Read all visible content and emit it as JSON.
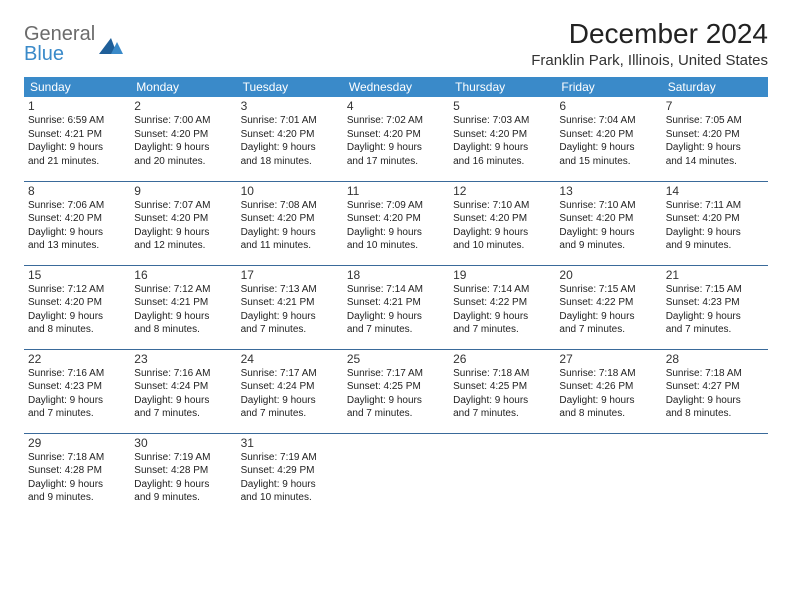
{
  "logo": {
    "top": "General",
    "bottom": "Blue"
  },
  "title": "December 2024",
  "location": "Franklin Park, Illinois, United States",
  "colors": {
    "header_bg": "#3a8ac9",
    "header_text": "#ffffff",
    "row_border": "#3a6a9a",
    "logo_gray": "#6b6b6b",
    "logo_blue": "#3a8ac9",
    "page_bg": "#ffffff"
  },
  "typography": {
    "title_fontsize": 28,
    "location_fontsize": 15,
    "header_fontsize": 12,
    "daynum_fontsize": 12,
    "body_fontsize": 10
  },
  "weekdays": [
    "Sunday",
    "Monday",
    "Tuesday",
    "Wednesday",
    "Thursday",
    "Friday",
    "Saturday"
  ],
  "weeks": [
    [
      {
        "n": "1",
        "sr": "Sunrise: 6:59 AM",
        "ss": "Sunset: 4:21 PM",
        "d1": "Daylight: 9 hours",
        "d2": "and 21 minutes."
      },
      {
        "n": "2",
        "sr": "Sunrise: 7:00 AM",
        "ss": "Sunset: 4:20 PM",
        "d1": "Daylight: 9 hours",
        "d2": "and 20 minutes."
      },
      {
        "n": "3",
        "sr": "Sunrise: 7:01 AM",
        "ss": "Sunset: 4:20 PM",
        "d1": "Daylight: 9 hours",
        "d2": "and 18 minutes."
      },
      {
        "n": "4",
        "sr": "Sunrise: 7:02 AM",
        "ss": "Sunset: 4:20 PM",
        "d1": "Daylight: 9 hours",
        "d2": "and 17 minutes."
      },
      {
        "n": "5",
        "sr": "Sunrise: 7:03 AM",
        "ss": "Sunset: 4:20 PM",
        "d1": "Daylight: 9 hours",
        "d2": "and 16 minutes."
      },
      {
        "n": "6",
        "sr": "Sunrise: 7:04 AM",
        "ss": "Sunset: 4:20 PM",
        "d1": "Daylight: 9 hours",
        "d2": "and 15 minutes."
      },
      {
        "n": "7",
        "sr": "Sunrise: 7:05 AM",
        "ss": "Sunset: 4:20 PM",
        "d1": "Daylight: 9 hours",
        "d2": "and 14 minutes."
      }
    ],
    [
      {
        "n": "8",
        "sr": "Sunrise: 7:06 AM",
        "ss": "Sunset: 4:20 PM",
        "d1": "Daylight: 9 hours",
        "d2": "and 13 minutes."
      },
      {
        "n": "9",
        "sr": "Sunrise: 7:07 AM",
        "ss": "Sunset: 4:20 PM",
        "d1": "Daylight: 9 hours",
        "d2": "and 12 minutes."
      },
      {
        "n": "10",
        "sr": "Sunrise: 7:08 AM",
        "ss": "Sunset: 4:20 PM",
        "d1": "Daylight: 9 hours",
        "d2": "and 11 minutes."
      },
      {
        "n": "11",
        "sr": "Sunrise: 7:09 AM",
        "ss": "Sunset: 4:20 PM",
        "d1": "Daylight: 9 hours",
        "d2": "and 10 minutes."
      },
      {
        "n": "12",
        "sr": "Sunrise: 7:10 AM",
        "ss": "Sunset: 4:20 PM",
        "d1": "Daylight: 9 hours",
        "d2": "and 10 minutes."
      },
      {
        "n": "13",
        "sr": "Sunrise: 7:10 AM",
        "ss": "Sunset: 4:20 PM",
        "d1": "Daylight: 9 hours",
        "d2": "and 9 minutes."
      },
      {
        "n": "14",
        "sr": "Sunrise: 7:11 AM",
        "ss": "Sunset: 4:20 PM",
        "d1": "Daylight: 9 hours",
        "d2": "and 9 minutes."
      }
    ],
    [
      {
        "n": "15",
        "sr": "Sunrise: 7:12 AM",
        "ss": "Sunset: 4:20 PM",
        "d1": "Daylight: 9 hours",
        "d2": "and 8 minutes."
      },
      {
        "n": "16",
        "sr": "Sunrise: 7:12 AM",
        "ss": "Sunset: 4:21 PM",
        "d1": "Daylight: 9 hours",
        "d2": "and 8 minutes."
      },
      {
        "n": "17",
        "sr": "Sunrise: 7:13 AM",
        "ss": "Sunset: 4:21 PM",
        "d1": "Daylight: 9 hours",
        "d2": "and 7 minutes."
      },
      {
        "n": "18",
        "sr": "Sunrise: 7:14 AM",
        "ss": "Sunset: 4:21 PM",
        "d1": "Daylight: 9 hours",
        "d2": "and 7 minutes."
      },
      {
        "n": "19",
        "sr": "Sunrise: 7:14 AM",
        "ss": "Sunset: 4:22 PM",
        "d1": "Daylight: 9 hours",
        "d2": "and 7 minutes."
      },
      {
        "n": "20",
        "sr": "Sunrise: 7:15 AM",
        "ss": "Sunset: 4:22 PM",
        "d1": "Daylight: 9 hours",
        "d2": "and 7 minutes."
      },
      {
        "n": "21",
        "sr": "Sunrise: 7:15 AM",
        "ss": "Sunset: 4:23 PM",
        "d1": "Daylight: 9 hours",
        "d2": "and 7 minutes."
      }
    ],
    [
      {
        "n": "22",
        "sr": "Sunrise: 7:16 AM",
        "ss": "Sunset: 4:23 PM",
        "d1": "Daylight: 9 hours",
        "d2": "and 7 minutes."
      },
      {
        "n": "23",
        "sr": "Sunrise: 7:16 AM",
        "ss": "Sunset: 4:24 PM",
        "d1": "Daylight: 9 hours",
        "d2": "and 7 minutes."
      },
      {
        "n": "24",
        "sr": "Sunrise: 7:17 AM",
        "ss": "Sunset: 4:24 PM",
        "d1": "Daylight: 9 hours",
        "d2": "and 7 minutes."
      },
      {
        "n": "25",
        "sr": "Sunrise: 7:17 AM",
        "ss": "Sunset: 4:25 PM",
        "d1": "Daylight: 9 hours",
        "d2": "and 7 minutes."
      },
      {
        "n": "26",
        "sr": "Sunrise: 7:18 AM",
        "ss": "Sunset: 4:25 PM",
        "d1": "Daylight: 9 hours",
        "d2": "and 7 minutes."
      },
      {
        "n": "27",
        "sr": "Sunrise: 7:18 AM",
        "ss": "Sunset: 4:26 PM",
        "d1": "Daylight: 9 hours",
        "d2": "and 8 minutes."
      },
      {
        "n": "28",
        "sr": "Sunrise: 7:18 AM",
        "ss": "Sunset: 4:27 PM",
        "d1": "Daylight: 9 hours",
        "d2": "and 8 minutes."
      }
    ],
    [
      {
        "n": "29",
        "sr": "Sunrise: 7:18 AM",
        "ss": "Sunset: 4:28 PM",
        "d1": "Daylight: 9 hours",
        "d2": "and 9 minutes."
      },
      {
        "n": "30",
        "sr": "Sunrise: 7:19 AM",
        "ss": "Sunset: 4:28 PM",
        "d1": "Daylight: 9 hours",
        "d2": "and 9 minutes."
      },
      {
        "n": "31",
        "sr": "Sunrise: 7:19 AM",
        "ss": "Sunset: 4:29 PM",
        "d1": "Daylight: 9 hours",
        "d2": "and 10 minutes."
      },
      null,
      null,
      null,
      null
    ]
  ]
}
